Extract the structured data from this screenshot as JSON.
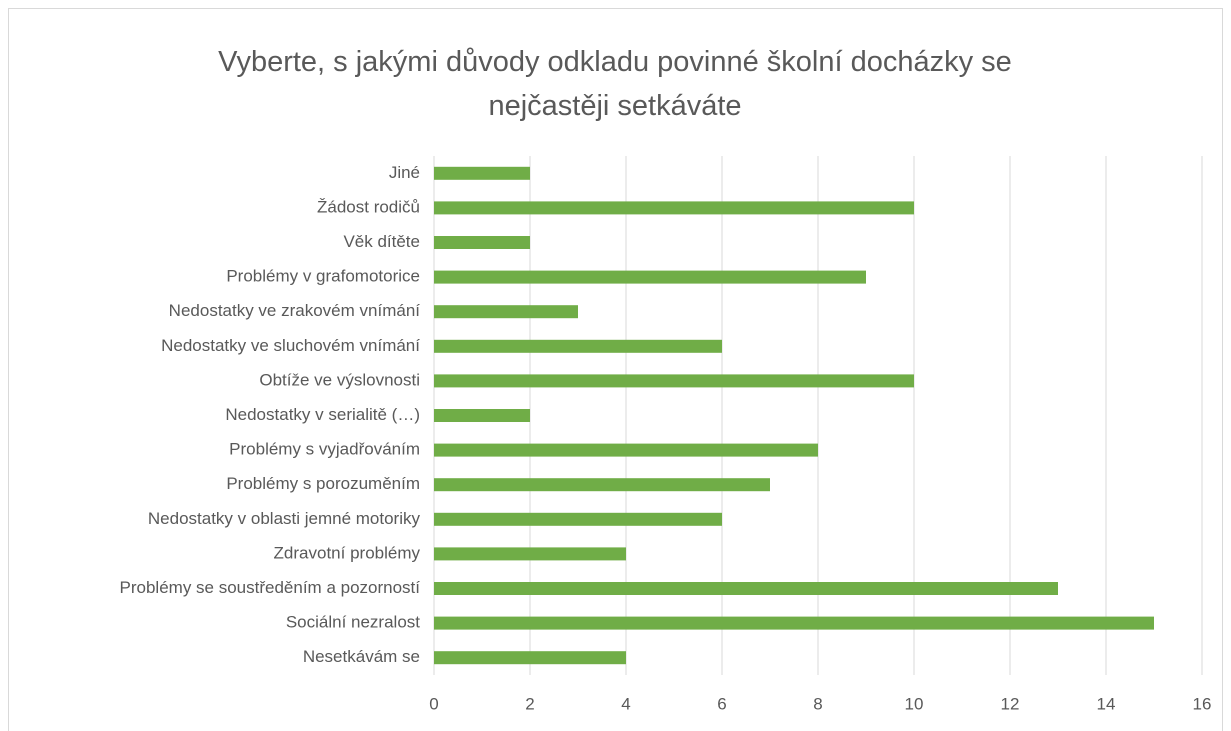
{
  "chart_data": {
    "type": "barh",
    "title": "Vyberte, s jakými důvody odkladu povinné školní docházky se nejčastěji setkáváte",
    "categories": [
      "Nesetkávám se",
      "Sociální nezralost",
      "Problémy se soustředěním a pozorností",
      "Zdravotní problémy",
      "Nedostatky v oblasti jemné motoriky",
      "Problémy s porozuměním",
      "Problémy s vyjadřováním",
      "Nedostatky v serialitě (…)",
      "Obtíže ve výslovnosti",
      "Nedostatky ve sluchovém vnímání",
      "Nedostatky ve zrakovém vnímání",
      "Problémy v grafomotorice",
      "Věk dítěte",
      "Žádost rodičů",
      "Jiné"
    ],
    "values": [
      4,
      15,
      13,
      4,
      6,
      7,
      8,
      2,
      10,
      6,
      3,
      9,
      2,
      10,
      2
    ],
    "color": "#70ad47",
    "xlim": [
      0,
      16
    ],
    "xticks": [
      0,
      2,
      4,
      6,
      8,
      10,
      12,
      14,
      16
    ],
    "grid": true
  }
}
